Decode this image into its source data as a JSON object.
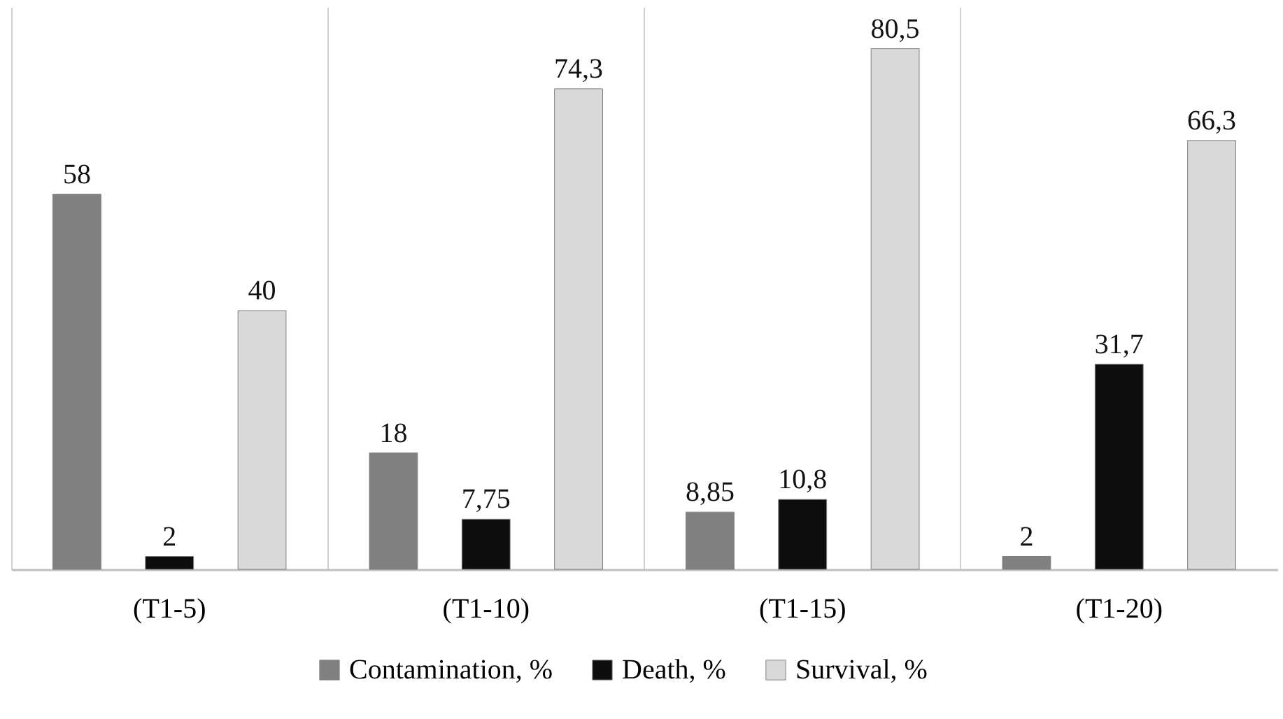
{
  "chart_data": {
    "type": "bar",
    "categories": [
      "(T1-5)",
      "(T1-10)",
      "(T1-15)",
      "(T1-20)"
    ],
    "series": [
      {
        "name": "Contamination, %",
        "color": "#808080",
        "values": [
          58,
          18,
          8.85,
          2
        ],
        "value_labels": [
          "58",
          "18",
          "8,85",
          "2"
        ]
      },
      {
        "name": "Death, %",
        "color": "#0d0d0d",
        "values": [
          2,
          7.75,
          10.8,
          31.7
        ],
        "value_labels": [
          "2",
          "7,75",
          "10,8",
          "31,7"
        ]
      },
      {
        "name": "Survival, %",
        "color": "#d9d9d9",
        "values": [
          40,
          74.3,
          80.5,
          66.3
        ],
        "value_labels": [
          "40",
          "74,3",
          "80,5",
          "66,3"
        ]
      }
    ],
    "grid": "x",
    "legend": "bottom",
    "tick_labels": "x"
  }
}
